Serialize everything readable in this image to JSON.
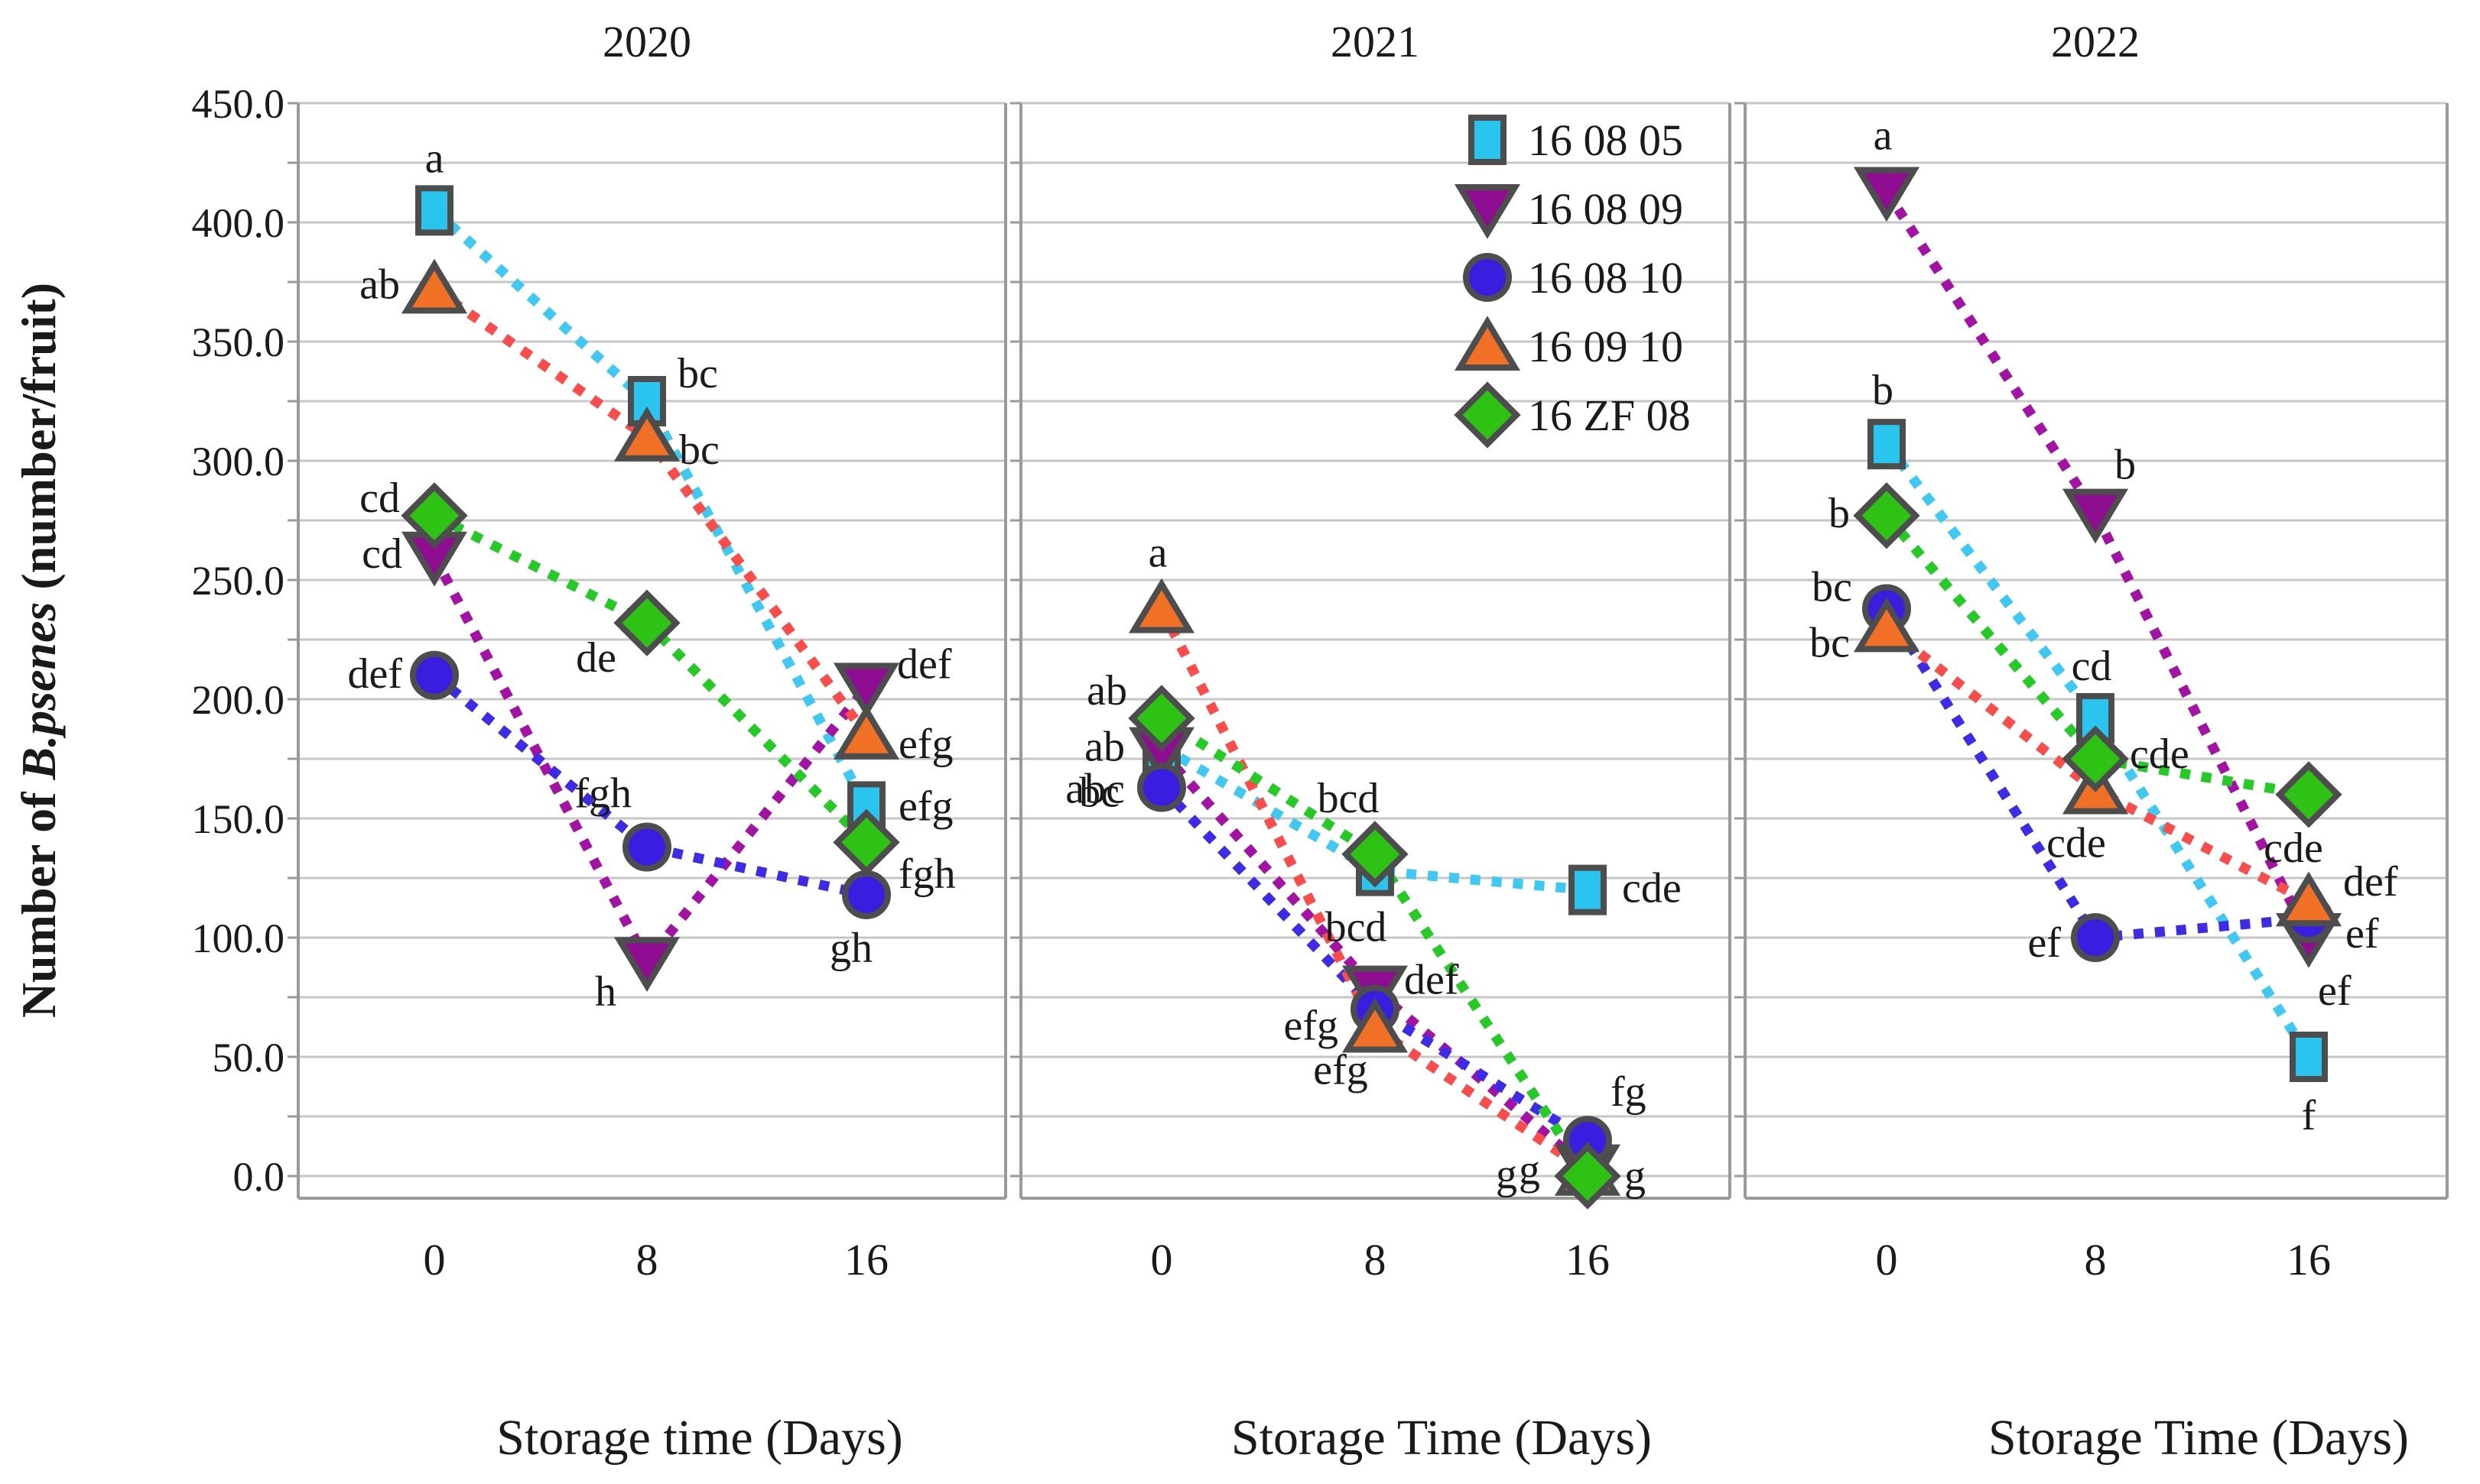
{
  "figure": {
    "y_axis": {
      "title_pre": "Number of ",
      "title_italic": "B.psenes",
      "title_post": " (number/fruit)",
      "ticks": [
        "450.0",
        "400.0",
        "350.0",
        "300.0",
        "250.0",
        "200.0",
        "150.0",
        "100.0",
        "50.0",
        "0.0"
      ],
      "max": 450,
      "min": 0,
      "major_step": 50,
      "minor_step": 25,
      "grid": "on"
    },
    "legend": {
      "position": "top-of-2021-panel",
      "items": [
        {
          "label": "16 08 05",
          "marker": "square",
          "color": "#29c5ef"
        },
        {
          "label": "16 08 09",
          "marker": "triangle-down",
          "color": "#8e0d90"
        },
        {
          "label": "16 08 10",
          "marker": "circle",
          "color": "#3a1ee0"
        },
        {
          "label": "16 09 10",
          "marker": "triangle-up",
          "color": "#f07125"
        },
        {
          "label": "16 ZF 08",
          "marker": "diamond",
          "color": "#2ec214"
        }
      ]
    },
    "colors": {
      "marker_outline": "#4d4d4d",
      "gridline": "#c7c7c7",
      "axis": "#9a9a9a",
      "text": "#1a1a1a"
    }
  },
  "chart_data": [
    {
      "type": "line",
      "title": "2020",
      "xlabel": "Storage time (Days)",
      "ylabel": "Number of B.psenes (number/fruit)",
      "x": [
        0,
        8,
        16
      ],
      "x_tick_labels": [
        "0",
        "8",
        "16"
      ],
      "ylim": [
        0,
        450
      ],
      "series": [
        {
          "name": "16 08 05",
          "marker": "square",
          "color": "#29c5ef",
          "line": "#3ec8f2",
          "values": [
            405,
            325,
            155
          ],
          "labels": [
            [
              "a",
              0,
              -50,
              "middle"
            ],
            [
              "bc",
              40,
              -18,
              "start"
            ],
            [
              "efg",
              42,
              18,
              "start"
            ]
          ]
        },
        {
          "name": "16 08 09",
          "marker": "triangle-down",
          "color": "#8e0d90",
          "line": "#a213a4",
          "values": [
            260,
            90,
            205
          ],
          "labels": [
            [
              "cd",
              -42,
              15,
              "end"
            ],
            [
              "h",
              -40,
              58,
              "end"
            ],
            [
              "def",
              40,
              -12,
              "start"
            ]
          ]
        },
        {
          "name": "16 08 10",
          "marker": "circle",
          "color": "#3a1ee0",
          "line": "#3d2be8",
          "values": [
            210,
            138,
            118
          ],
          "labels": [
            [
              "def",
              -42,
              16,
              "end"
            ],
            [
              "fgh",
              -20,
              -52,
              "end"
            ],
            [
              "gh",
              -20,
              88,
              "middle"
            ]
          ]
        },
        {
          "name": "16 09 10",
          "marker": "triangle-up",
          "color": "#f07125",
          "line": "#fb4c4c",
          "values": [
            372,
            310,
            185
          ],
          "labels": [
            [
              "ab",
              -45,
              12,
              "end"
            ],
            [
              "bc",
              42,
              35,
              "start"
            ],
            [
              "efg",
              42,
              30,
              "start"
            ]
          ]
        },
        {
          "name": "16 ZF 08",
          "marker": "diamond",
          "color": "#2ec214",
          "line": "#26ca26",
          "values": [
            277,
            232,
            140
          ],
          "labels": [
            [
              "cd",
              -45,
              -5,
              "end"
            ],
            [
              "de",
              -40,
              64,
              "end"
            ],
            [
              "fgh",
              42,
              60,
              "start"
            ]
          ]
        }
      ]
    },
    {
      "type": "line",
      "title": "2021",
      "xlabel": "Storage Time (Days)",
      "ylabel": "Number of B.psenes (number/fruit)",
      "x": [
        0,
        8,
        16
      ],
      "x_tick_labels": [
        "0",
        "8",
        "16"
      ],
      "ylim": [
        0,
        450
      ],
      "series": [
        {
          "name": "16 08 05",
          "marker": "square",
          "color": "#29c5ef",
          "line": "#3ec8f2",
          "values": [
            180,
            128,
            120
          ],
          "labels": [
            [
              "bc",
              -55,
              78,
              "end"
            ],
            [
              "bcd",
              -25,
              92,
              "middle"
            ],
            [
              "cde",
              45,
              16,
              "start"
            ]
          ]
        },
        {
          "name": "16 08 09",
          "marker": "triangle-down",
          "color": "#8e0d90",
          "line": "#a213a4",
          "values": [
            178,
            78,
            3
          ],
          "labels": [
            [
              "ab",
              -48,
              12,
              "end"
            ],
            [
              "def",
              38,
              5,
              "start"
            ],
            [
              "g",
              -62,
              20,
              "end"
            ]
          ]
        },
        {
          "name": "16 08 10",
          "marker": "circle",
          "color": "#3a1ee0",
          "line": "#3d2be8",
          "values": [
            163,
            70,
            15
          ],
          "labels": [
            [
              "abc",
              -48,
              20,
              "end"
            ],
            [
              "efg",
              -45,
              98,
              "middle"
            ],
            [
              "fg",
              30,
              -45,
              "start"
            ]
          ]
        },
        {
          "name": "16 09 10",
          "marker": "triangle-up",
          "color": "#f07125",
          "line": "#fb4c4c",
          "values": [
            238,
            62,
            2
          ],
          "labels": [
            [
              "a",
              -5,
              -55,
              "middle"
            ],
            [
              "efg",
              -48,
              15,
              "end"
            ],
            [
              "g",
              -92,
              22,
              "end"
            ]
          ]
        },
        {
          "name": "16 ZF 08",
          "marker": "diamond",
          "color": "#2ec214",
          "line": "#26ca26",
          "values": [
            192,
            135,
            0
          ],
          "labels": [
            [
              "ab",
              -45,
              -18,
              "end"
            ],
            [
              "bcd",
              -35,
              -55,
              "middle"
            ],
            [
              "g",
              48,
              18,
              "start"
            ]
          ]
        }
      ]
    },
    {
      "type": "line",
      "title": "2022",
      "xlabel": "Storage Time (Days)",
      "ylabel": "Number of B.psenes (number/fruit)",
      "x": [
        0,
        8,
        16
      ],
      "x_tick_labels": [
        "0",
        "8",
        "16"
      ],
      "ylim": [
        0,
        450
      ],
      "series": [
        {
          "name": "16 08 05",
          "marker": "square",
          "color": "#29c5ef",
          "line": "#3ec8f2",
          "values": [
            307,
            192,
            50
          ],
          "labels": [
            [
              "b",
              -5,
              -52,
              "middle"
            ],
            [
              "cd",
              -5,
              -50,
              "middle"
            ],
            [
              "f",
              0,
              95,
              "middle"
            ]
          ]
        },
        {
          "name": "16 08 09",
          "marker": "triangle-down",
          "color": "#8e0d90",
          "line": "#a213a4",
          "values": [
            413,
            278,
            100
          ],
          "labels": [
            [
              "a",
              -5,
              -55,
              "middle"
            ],
            [
              "b",
              25,
              -45,
              "start"
            ],
            [
              "ef",
              12,
              88,
              "start"
            ]
          ]
        },
        {
          "name": "16 08 10",
          "marker": "circle",
          "color": "#3a1ee0",
          "line": "#3d2be8",
          "values": [
            238,
            100,
            108
          ],
          "labels": [
            [
              "bc",
              -45,
              -10,
              "end"
            ],
            [
              "ef",
              -45,
              25,
              "end"
            ],
            [
              "ef",
              48,
              38,
              "start"
            ]
          ]
        },
        {
          "name": "16 09 10",
          "marker": "triangle-up",
          "color": "#f07125",
          "line": "#fb4c4c",
          "values": [
            230,
            162,
            115
          ],
          "labels": [
            [
              "bc",
              -48,
              38,
              "end"
            ],
            [
              "cde",
              -25,
              88,
              "middle"
            ],
            [
              "def",
              45,
              -8,
              "start"
            ]
          ]
        },
        {
          "name": "16 ZF 08",
          "marker": "diamond",
          "color": "#2ec214",
          "line": "#26ca26",
          "values": [
            277,
            175,
            160
          ],
          "labels": [
            [
              "b",
              -48,
              15,
              "end"
            ],
            [
              "cde",
              45,
              12,
              "start"
            ],
            [
              "cde",
              -20,
              88,
              "middle"
            ]
          ]
        }
      ]
    }
  ]
}
